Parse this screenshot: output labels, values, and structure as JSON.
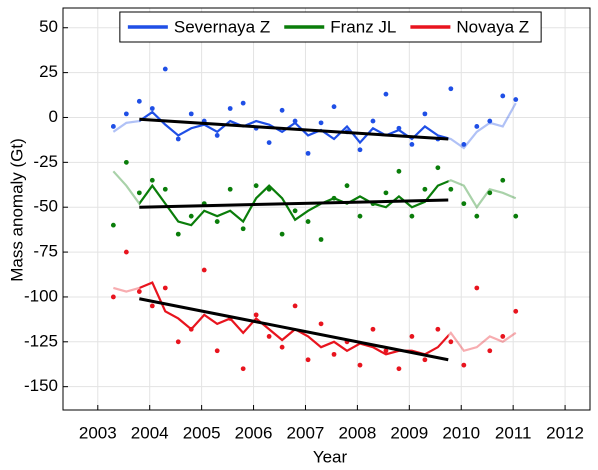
{
  "chart_data": {
    "type": "scatter-line",
    "xlabel": "Year",
    "ylabel": "Mass anomaly (Gt)",
    "xlim": [
      2002.33,
      2012.48
    ],
    "xticks": [
      2003,
      2004,
      2005,
      2006,
      2007,
      2008,
      2009,
      2010,
      2011,
      2012
    ],
    "ylim": [
      -163,
      61
    ],
    "yticks": [
      50,
      25,
      0,
      -25,
      -50,
      -75,
      -100,
      -125,
      -150
    ],
    "grid": true,
    "legend": "top",
    "series": [
      {
        "name": "Severnaya Z",
        "color": "#1f4fe6",
        "x": [
          2003.3,
          2003.55,
          2003.8,
          2004.05,
          2004.3,
          2004.55,
          2004.8,
          2005.05,
          2005.3,
          2005.55,
          2005.8,
          2006.05,
          2006.3,
          2006.55,
          2006.8,
          2007.05,
          2007.3,
          2007.55,
          2007.8,
          2008.05,
          2008.3,
          2008.55,
          2008.8,
          2009.05,
          2009.3,
          2009.55,
          2009.8,
          2010.05,
          2010.3,
          2010.55,
          2010.8,
          2011.05
        ],
        "values": [
          -5,
          2,
          9,
          5,
          27,
          -12,
          2,
          -2,
          -10,
          5,
          8,
          -6,
          -14,
          4,
          -2,
          -20,
          -3,
          6,
          -8,
          -18,
          -2,
          13,
          -6,
          -15,
          2,
          -12,
          16,
          -15,
          -5,
          -2,
          12,
          10
        ],
        "smooth": {
          "x": [
            2003.3,
            2003.55,
            2003.8,
            2004.05,
            2004.3,
            2004.55,
            2004.8,
            2005.05,
            2005.3,
            2005.55,
            2005.8,
            2006.05,
            2006.3,
            2006.55,
            2006.8,
            2007.05,
            2007.3,
            2007.55,
            2007.8,
            2008.05,
            2008.3,
            2008.55,
            2008.8,
            2009.05,
            2009.3,
            2009.55,
            2009.8,
            2010.05,
            2010.3,
            2010.55,
            2010.8,
            2011.05
          ],
          "values": [
            -8,
            -3,
            -2,
            3,
            -4,
            -10,
            -6,
            -4,
            -8,
            -2,
            -5,
            -2,
            -4,
            -8,
            -3,
            -10,
            -7,
            -12,
            -5,
            -14,
            -6,
            -10,
            -7,
            -12,
            -5,
            -10,
            -12,
            -17,
            -8,
            -3,
            -5,
            8
          ]
        },
        "trend": {
          "x": [
            2003.8,
            2009.75
          ],
          "values": [
            -1,
            -12
          ]
        }
      },
      {
        "name": "Franz JL",
        "color": "#0a7d0a",
        "x": [
          2003.3,
          2003.55,
          2003.8,
          2004.05,
          2004.3,
          2004.55,
          2004.8,
          2005.05,
          2005.3,
          2005.55,
          2005.8,
          2006.05,
          2006.3,
          2006.55,
          2006.8,
          2007.05,
          2007.3,
          2007.55,
          2007.8,
          2008.05,
          2008.3,
          2008.55,
          2008.8,
          2009.05,
          2009.3,
          2009.55,
          2009.8,
          2010.05,
          2010.3,
          2010.55,
          2010.8,
          2011.05
        ],
        "values": [
          -60,
          -25,
          -42,
          -35,
          -40,
          -65,
          -55,
          -48,
          -58,
          -40,
          -62,
          -38,
          -40,
          -65,
          -52,
          -58,
          -68,
          -45,
          -38,
          -55,
          -48,
          -42,
          -30,
          -55,
          -40,
          -28,
          -40,
          -48,
          -55,
          -42,
          -35,
          -55
        ],
        "smooth": {
          "x": [
            2003.3,
            2003.55,
            2003.8,
            2004.05,
            2004.3,
            2004.55,
            2004.8,
            2005.05,
            2005.3,
            2005.55,
            2005.8,
            2006.05,
            2006.3,
            2006.55,
            2006.8,
            2007.05,
            2007.3,
            2007.55,
            2007.8,
            2008.05,
            2008.3,
            2008.55,
            2008.8,
            2009.05,
            2009.3,
            2009.55,
            2009.8,
            2010.05,
            2010.3,
            2010.55,
            2010.8,
            2011.05
          ],
          "values": [
            -30,
            -38,
            -48,
            -38,
            -48,
            -58,
            -60,
            -52,
            -55,
            -52,
            -58,
            -45,
            -38,
            -45,
            -57,
            -52,
            -48,
            -45,
            -48,
            -44,
            -48,
            -50,
            -44,
            -50,
            -47,
            -38,
            -35,
            -38,
            -50,
            -40,
            -42,
            -45
          ]
        },
        "trend": {
          "x": [
            2003.8,
            2009.75
          ],
          "values": [
            -50,
            -46
          ]
        }
      },
      {
        "name": "Novaya Z",
        "color": "#e8141e",
        "x": [
          2003.3,
          2003.55,
          2003.8,
          2004.05,
          2004.3,
          2004.55,
          2004.8,
          2005.05,
          2005.3,
          2005.55,
          2005.8,
          2006.05,
          2006.3,
          2006.55,
          2006.8,
          2007.05,
          2007.3,
          2007.55,
          2007.8,
          2008.05,
          2008.3,
          2008.55,
          2008.8,
          2009.05,
          2009.3,
          2009.55,
          2009.8,
          2010.05,
          2010.3,
          2010.55,
          2010.8,
          2011.05
        ],
        "values": [
          -100,
          -75,
          -97,
          -105,
          -95,
          -125,
          -118,
          -85,
          -130,
          -112,
          -140,
          -110,
          -122,
          -128,
          -105,
          -135,
          -115,
          -132,
          -125,
          -138,
          -118,
          -130,
          -140,
          -122,
          -135,
          -118,
          -125,
          -138,
          -95,
          -130,
          -122,
          -108
        ],
        "smooth": {
          "x": [
            2003.3,
            2003.55,
            2003.8,
            2004.05,
            2004.3,
            2004.55,
            2004.8,
            2005.05,
            2005.3,
            2005.55,
            2005.8,
            2006.05,
            2006.3,
            2006.55,
            2006.8,
            2007.05,
            2007.3,
            2007.55,
            2007.8,
            2008.05,
            2008.3,
            2008.55,
            2008.8,
            2009.05,
            2009.3,
            2009.55,
            2009.8,
            2010.05,
            2010.3,
            2010.55,
            2010.8,
            2011.05
          ],
          "values": [
            -95,
            -97,
            -95,
            -92,
            -108,
            -112,
            -118,
            -110,
            -115,
            -112,
            -120,
            -112,
            -118,
            -124,
            -118,
            -122,
            -128,
            -125,
            -130,
            -126,
            -128,
            -132,
            -130,
            -130,
            -132,
            -128,
            -120,
            -130,
            -128,
            -122,
            -125,
            -120
          ]
        },
        "trend": {
          "x": [
            2003.8,
            2009.75
          ],
          "values": [
            -101,
            -135
          ]
        }
      }
    ]
  }
}
